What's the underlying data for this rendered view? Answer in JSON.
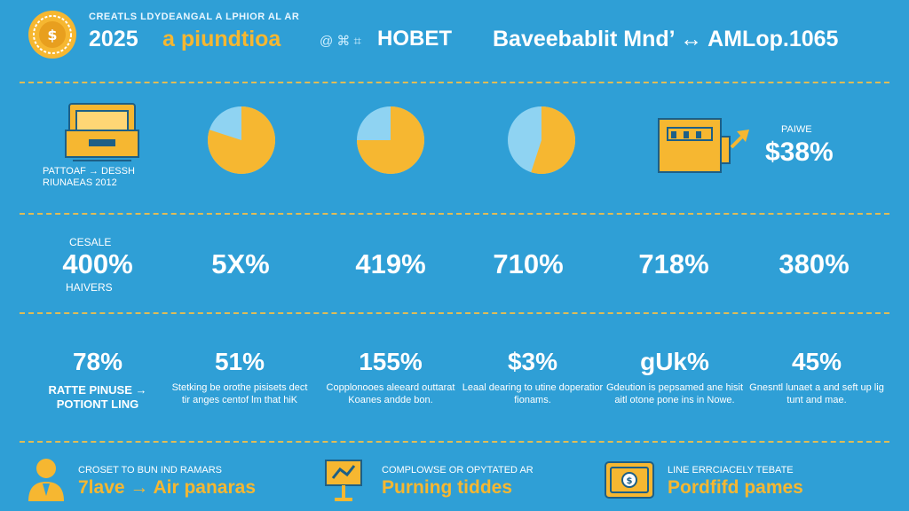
{
  "header": {
    "small_line": "CREATLS LDYDEANGAL A LPHIOR AL AR",
    "year": "2025",
    "accent": "a piundtioa",
    "glyph": "@ ⌘ ⌗",
    "hobet": "HOBET",
    "right_title": "Baveebablit Mnd’ ↔ AMLop.1065"
  },
  "colors": {
    "background": "#2f9fd6",
    "accent_yellow": "#f6b731",
    "light_blue": "#8fd3f2",
    "divider": "#f3c04a"
  },
  "row1": {
    "tray_caption_line1": "PATTOAF → DESSH",
    "tray_caption_line2": "RIUNAEAS 2012",
    "pies": [
      {
        "icon": "pie-chart-icon",
        "fraction": 0.8
      },
      {
        "icon": "pie-chart-icon",
        "fraction": 0.75
      },
      {
        "icon": "pie-chart-icon",
        "fraction": 0.55
      }
    ],
    "stat_label": "PAIWE",
    "stat_value": "$38%"
  },
  "row2": {
    "label_top": "CESALE",
    "label_bottom": "HAIVERS",
    "stats": [
      "400%",
      "5X%",
      "419%",
      "710%",
      "718%",
      "380%"
    ]
  },
  "row3": {
    "items": [
      {
        "value": "78%",
        "desc": "RATTE PINUSE → POTIONT LING"
      },
      {
        "value": "51%",
        "desc": "Stetking be orothe pisisets dect tir anges centof lm that hiK"
      },
      {
        "value": "155%",
        "desc": "Copplonooes aleeard outtarat Koanes andde bon."
      },
      {
        "value": "$3%",
        "desc": "Leaal dearing to utine doperatior fionams."
      },
      {
        "value": "gUk%",
        "desc": "Gdeution is pepsamed ane hisit aitl otone pone ins in Nowe."
      },
      {
        "value": "45%",
        "desc": "Gnesntl lunaet a and seft up lig tunt and mae."
      }
    ]
  },
  "row4": {
    "items": [
      {
        "icon": "person-icon",
        "small": "CROSET TO BUN IND RAMARS",
        "big": "7lave → Air panaras"
      },
      {
        "icon": "easel-icon",
        "small": "COMPLOWSE OR OPYTATED AR",
        "big": "Purning tiddes"
      },
      {
        "icon": "wallet-icon",
        "small": "LINE ERRCIACELY TEBATE",
        "big": "Pordfifd pames"
      }
    ]
  }
}
